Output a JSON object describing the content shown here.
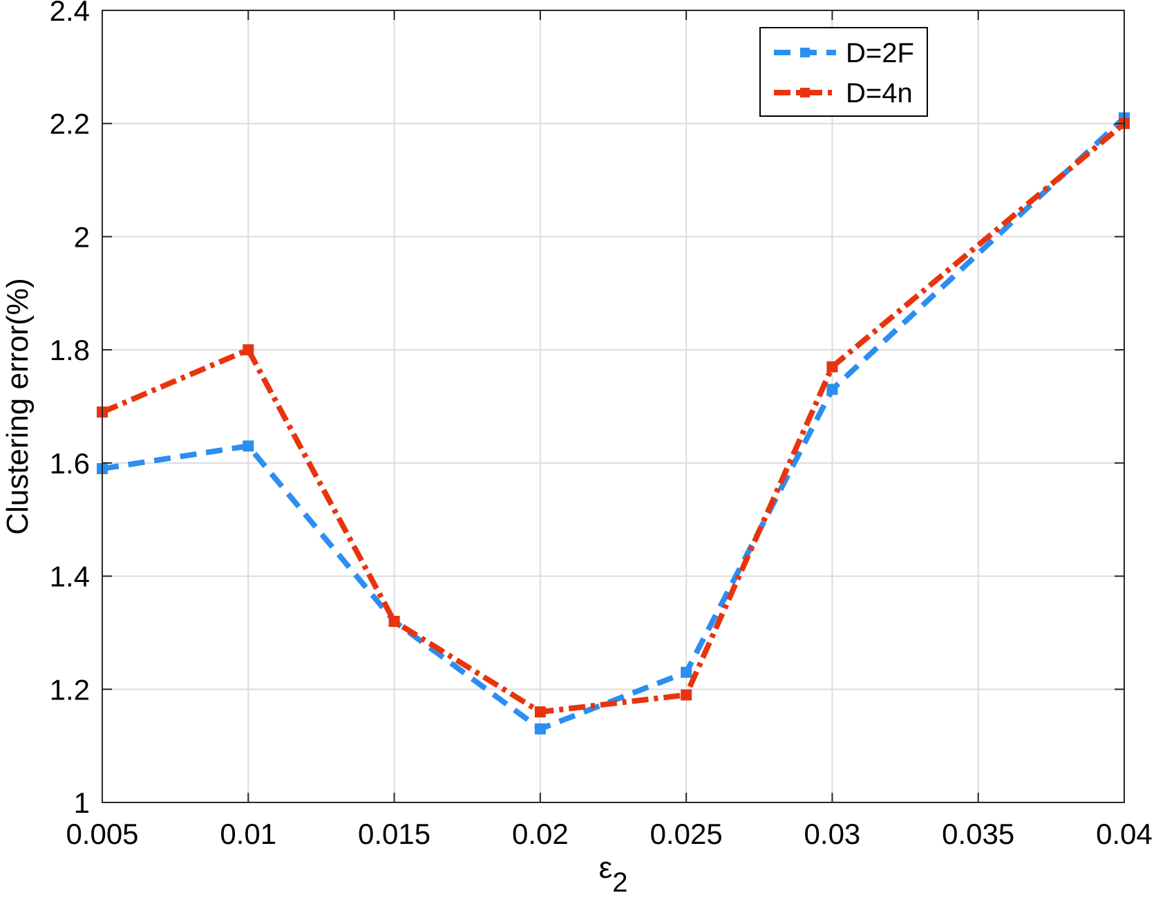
{
  "chart_data": {
    "type": "line",
    "xlabel": {
      "main": "ε",
      "sub": "2"
    },
    "ylabel": "Clustering error(%)",
    "x": [
      0.005,
      0.01,
      0.015,
      0.02,
      0.025,
      0.03,
      0.04
    ],
    "xlim": [
      0.005,
      0.04
    ],
    "ylim": [
      1,
      2.4
    ],
    "xticks": [
      0.005,
      0.01,
      0.015,
      0.02,
      0.025,
      0.03,
      0.035,
      0.04
    ],
    "xtick_labels": [
      "0.005",
      "0.01",
      "0.015",
      "0.02",
      "0.025",
      "0.03",
      "0.035",
      "0.04"
    ],
    "yticks": [
      1,
      1.2,
      1.4,
      1.6,
      1.8,
      2,
      2.2,
      2.4
    ],
    "ytick_labels": [
      "1",
      "1.2",
      "1.4",
      "1.6",
      "1.8",
      "2",
      "2.2",
      "2.4"
    ],
    "grid": true,
    "legend_position": "top-right",
    "series": [
      {
        "name": "D=2F",
        "color": "#2b8ef0",
        "values": [
          1.59,
          1.63,
          1.32,
          1.13,
          1.23,
          1.73,
          2.21
        ]
      },
      {
        "name": "D=4n",
        "color": "#e8340e",
        "values": [
          1.69,
          1.8,
          1.32,
          1.16,
          1.19,
          1.77,
          2.2
        ]
      }
    ]
  }
}
